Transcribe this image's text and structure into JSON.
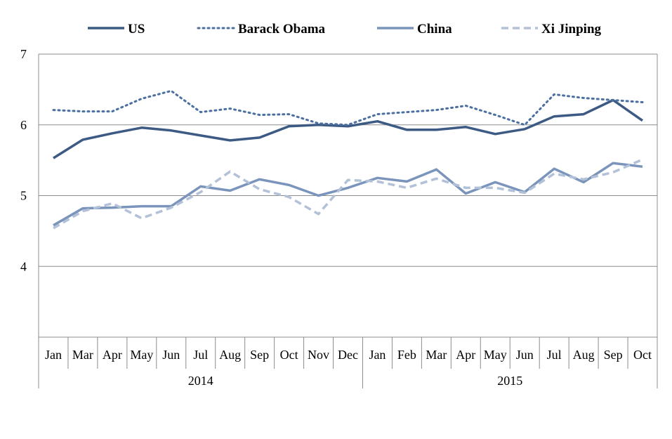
{
  "chart_data": {
    "type": "line",
    "title": "",
    "xlabel": "",
    "ylabel": "",
    "ylim": [
      3,
      7
    ],
    "yticks": [
      4,
      5,
      6,
      7
    ],
    "grid": true,
    "legend_position": "top",
    "categories": [
      "Jan",
      "Mar",
      "Apr",
      "May",
      "Jun",
      "Jul",
      "Aug",
      "Sep",
      "Oct",
      "Nov",
      "Dec",
      "Jan",
      "Feb",
      "Mar",
      "Apr",
      "May",
      "Jun",
      "Jul",
      "Aug",
      "Sep",
      "Oct"
    ],
    "year_groups": [
      {
        "label": "2014",
        "count": 11
      },
      {
        "label": "2015",
        "count": 10
      }
    ],
    "series": [
      {
        "name": "US",
        "style": "solid-thick",
        "color": "#3c5a84",
        "values": [
          5.53,
          5.79,
          5.88,
          5.96,
          5.92,
          5.85,
          5.78,
          5.82,
          5.98,
          6.0,
          5.98,
          6.05,
          5.93,
          5.93,
          5.97,
          5.87,
          5.94,
          6.12,
          6.15,
          6.35,
          6.06
        ]
      },
      {
        "name": "Barack Obama",
        "style": "dotted",
        "color": "#4a6fa0",
        "values": [
          6.21,
          6.19,
          6.19,
          6.37,
          6.48,
          6.18,
          6.23,
          6.14,
          6.15,
          6.02,
          6.0,
          6.15,
          6.18,
          6.21,
          6.27,
          6.14,
          6.0,
          6.43,
          6.38,
          6.35,
          6.32
        ]
      },
      {
        "name": "China",
        "style": "solid",
        "color": "#7a94bb",
        "values": [
          4.58,
          4.82,
          4.83,
          4.85,
          4.85,
          5.13,
          5.07,
          5.23,
          5.15,
          5.0,
          5.11,
          5.25,
          5.2,
          5.37,
          5.03,
          5.19,
          5.05,
          5.38,
          5.19,
          5.46,
          5.41
        ]
      },
      {
        "name": "Xi Jinping",
        "style": "dashed",
        "color": "#b3c1d8",
        "values": [
          4.54,
          4.78,
          4.89,
          4.68,
          4.83,
          5.05,
          5.34,
          5.09,
          4.98,
          4.74,
          5.22,
          5.2,
          5.11,
          5.24,
          5.11,
          5.11,
          5.04,
          5.31,
          5.23,
          5.33,
          5.51
        ]
      }
    ]
  }
}
